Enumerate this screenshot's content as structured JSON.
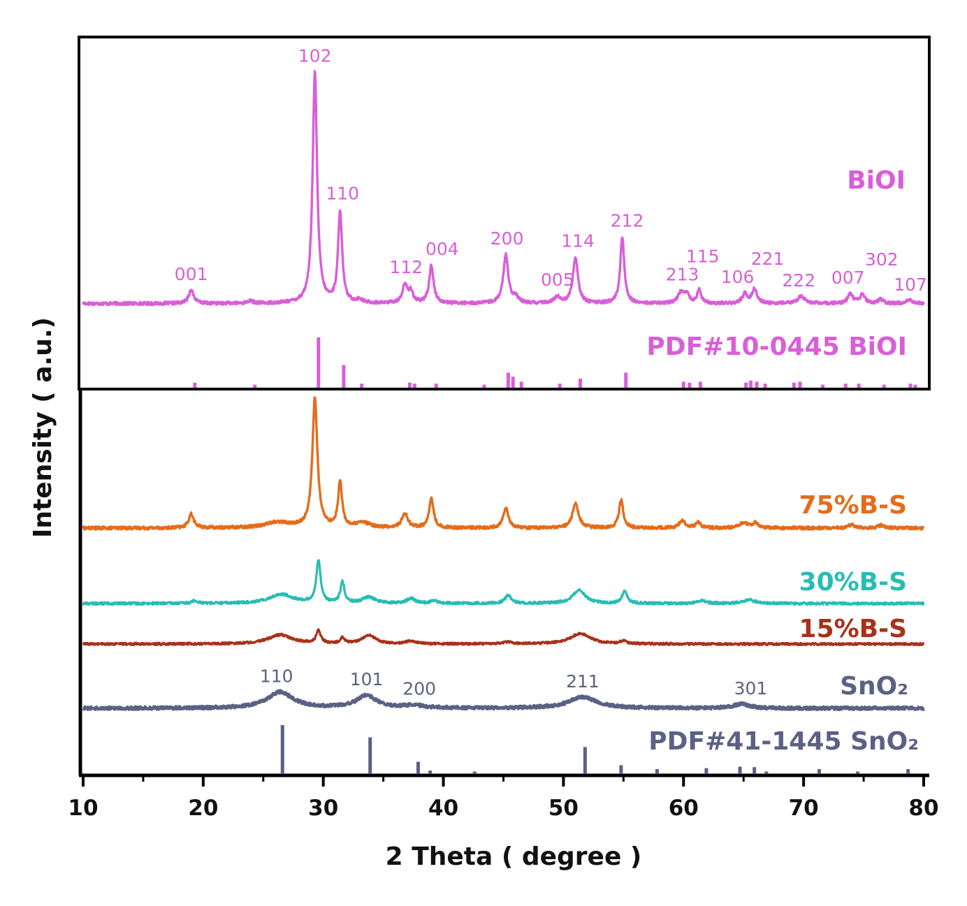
{
  "chart_data": {
    "type": "line",
    "title": "",
    "xlabel": "2 Theta ( degree )",
    "ylabel": "Intensity ( a.u.)",
    "xlim": [
      10,
      80
    ],
    "x_ticks": [
      "10",
      "20",
      "30",
      "40",
      "50",
      "60",
      "70",
      "80"
    ],
    "colors": {
      "BiOI": "#d95ed8",
      "B75": "#e36d1c",
      "B30": "#26bdb3",
      "B15": "#a8311b",
      "SnO2": "#5a6184"
    },
    "series": [
      {
        "key": "BiOI",
        "name": "BiOI",
        "color": "#d95ed8",
        "baseline": 3,
        "noise": 0.9,
        "peaks": [
          [
            19.0,
            17,
            0.25
          ],
          [
            23.9,
            3,
            0.3
          ],
          [
            29.3,
            290,
            0.22
          ],
          [
            31.4,
            115,
            0.2
          ],
          [
            33.0,
            4,
            0.3
          ],
          [
            36.8,
            23,
            0.25
          ],
          [
            37.3,
            14,
            0.2
          ],
          [
            39.0,
            47,
            0.22
          ],
          [
            45.2,
            61,
            0.25
          ],
          [
            46.0,
            7,
            0.25
          ],
          [
            49.5,
            8,
            0.3
          ],
          [
            51.0,
            58,
            0.25
          ],
          [
            54.9,
            84,
            0.2
          ],
          [
            59.8,
            14,
            0.3
          ],
          [
            60.3,
            10,
            0.25
          ],
          [
            61.3,
            17,
            0.2
          ],
          [
            65.1,
            12,
            0.25
          ],
          [
            65.9,
            18,
            0.25
          ],
          [
            69.8,
            9,
            0.35
          ],
          [
            73.9,
            12,
            0.25
          ],
          [
            74.9,
            11,
            0.25
          ],
          [
            76.4,
            5,
            0.25
          ],
          [
            78.8,
            4,
            0.3
          ]
        ]
      },
      {
        "key": "B75",
        "name": "75%B-S",
        "color": "#e36d1c",
        "baseline": 2,
        "noise": 1.0,
        "peaks": [
          [
            19.0,
            20,
            0.25
          ],
          [
            26.2,
            8,
            1.3
          ],
          [
            29.3,
            185,
            0.25
          ],
          [
            31.4,
            65,
            0.2
          ],
          [
            33.3,
            7,
            0.7
          ],
          [
            36.8,
            20,
            0.3
          ],
          [
            39.0,
            42,
            0.22
          ],
          [
            45.2,
            30,
            0.25
          ],
          [
            51.0,
            35,
            0.3
          ],
          [
            54.8,
            40,
            0.22
          ],
          [
            59.9,
            10,
            0.3
          ],
          [
            61.2,
            8,
            0.25
          ],
          [
            65.0,
            8,
            0.35
          ],
          [
            66.0,
            7,
            0.3
          ],
          [
            74.0,
            5,
            0.3
          ],
          [
            76.5,
            4,
            0.3
          ]
        ]
      },
      {
        "key": "B30",
        "name": "30%B-S",
        "color": "#26bdb3",
        "baseline": 2,
        "noise": 0.8,
        "peaks": [
          [
            19.3,
            4,
            0.3
          ],
          [
            26.5,
            13,
            1.2
          ],
          [
            29.6,
            60,
            0.22
          ],
          [
            31.6,
            30,
            0.2
          ],
          [
            33.8,
            9,
            0.6
          ],
          [
            37.3,
            7,
            0.4
          ],
          [
            39.2,
            4,
            0.3
          ],
          [
            45.4,
            12,
            0.3
          ],
          [
            51.3,
            20,
            0.6
          ],
          [
            55.1,
            18,
            0.25
          ],
          [
            61.5,
            4,
            0.4
          ],
          [
            65.5,
            5,
            0.6
          ]
        ]
      },
      {
        "key": "B15",
        "name": "15%B-S",
        "color": "#a8311b",
        "baseline": 2,
        "noise": 0.7,
        "peaks": [
          [
            26.4,
            13,
            1.2
          ],
          [
            29.6,
            18,
            0.22
          ],
          [
            31.6,
            8,
            0.2
          ],
          [
            33.8,
            12,
            0.7
          ],
          [
            37.3,
            4,
            0.5
          ],
          [
            45.4,
            3,
            0.4
          ],
          [
            51.4,
            15,
            1.0
          ],
          [
            55.0,
            4,
            0.3
          ]
        ]
      },
      {
        "key": "SnO2",
        "name": "SnO₂",
        "color": "#5a6184",
        "baseline": 2,
        "noise": 1.0,
        "peaks": [
          [
            26.4,
            23,
            1.3
          ],
          [
            33.6,
            18,
            1.0
          ],
          [
            37.5,
            4,
            0.9
          ],
          [
            51.6,
            16,
            1.4
          ],
          [
            64.8,
            6,
            0.8
          ]
        ]
      }
    ],
    "reference_patterns": [
      {
        "key": "BiOI_ref",
        "name": "PDF#10-0445 BiOI",
        "color": "#d95ed8",
        "sticks": [
          [
            19.3,
            10
          ],
          [
            24.3,
            6
          ],
          [
            29.6,
            100
          ],
          [
            31.7,
            45
          ],
          [
            33.2,
            8
          ],
          [
            37.2,
            10
          ],
          [
            37.6,
            8
          ],
          [
            39.4,
            8
          ],
          [
            43.4,
            6
          ],
          [
            45.4,
            30
          ],
          [
            45.8,
            22
          ],
          [
            46.5,
            12
          ],
          [
            49.7,
            8
          ],
          [
            51.4,
            18
          ],
          [
            55.2,
            30
          ],
          [
            60.0,
            12
          ],
          [
            60.5,
            10
          ],
          [
            61.4,
            12
          ],
          [
            65.2,
            10
          ],
          [
            65.6,
            14
          ],
          [
            66.1,
            12
          ],
          [
            66.8,
            8
          ],
          [
            69.2,
            10
          ],
          [
            69.7,
            12
          ],
          [
            71.6,
            6
          ],
          [
            73.5,
            8
          ],
          [
            74.6,
            8
          ],
          [
            76.7,
            6
          ],
          [
            78.9,
            8
          ],
          [
            79.3,
            6
          ]
        ]
      },
      {
        "key": "SnO2_ref",
        "name": "PDF#41-1445 SnO₂",
        "color": "#5a6184",
        "sticks": [
          [
            26.6,
            100
          ],
          [
            33.9,
            75
          ],
          [
            37.9,
            25
          ],
          [
            38.9,
            7
          ],
          [
            42.6,
            5
          ],
          [
            51.8,
            55
          ],
          [
            54.8,
            18
          ],
          [
            57.8,
            10
          ],
          [
            61.9,
            12
          ],
          [
            64.7,
            15
          ],
          [
            65.9,
            14
          ],
          [
            66.9,
            5
          ],
          [
            71.3,
            10
          ],
          [
            74.5,
            5
          ],
          [
            78.7,
            10
          ]
        ]
      }
    ],
    "peak_labels": [
      {
        "series": "BiOI",
        "labels": [
          [
            "001",
            19.0
          ],
          [
            "102",
            29.3
          ],
          [
            "110",
            31.6
          ],
          [
            "112",
            36.9
          ],
          [
            "004",
            39.9
          ],
          [
            "200",
            45.3
          ],
          [
            "005",
            49.5
          ],
          [
            "114",
            51.2
          ],
          [
            "212",
            55.3
          ],
          [
            "213",
            59.9
          ],
          [
            "115",
            61.6
          ],
          [
            "106",
            64.5
          ],
          [
            "221",
            67.0
          ],
          [
            "222",
            69.6
          ],
          [
            "007",
            73.7
          ],
          [
            "302",
            76.5
          ],
          [
            "107",
            78.9
          ]
        ]
      },
      {
        "series": "SnO2",
        "labels": [
          [
            "110",
            26.1
          ],
          [
            "101",
            33.6
          ],
          [
            "200",
            38.0
          ],
          [
            "211",
            51.6
          ],
          [
            "301",
            65.6
          ]
        ]
      }
    ]
  }
}
